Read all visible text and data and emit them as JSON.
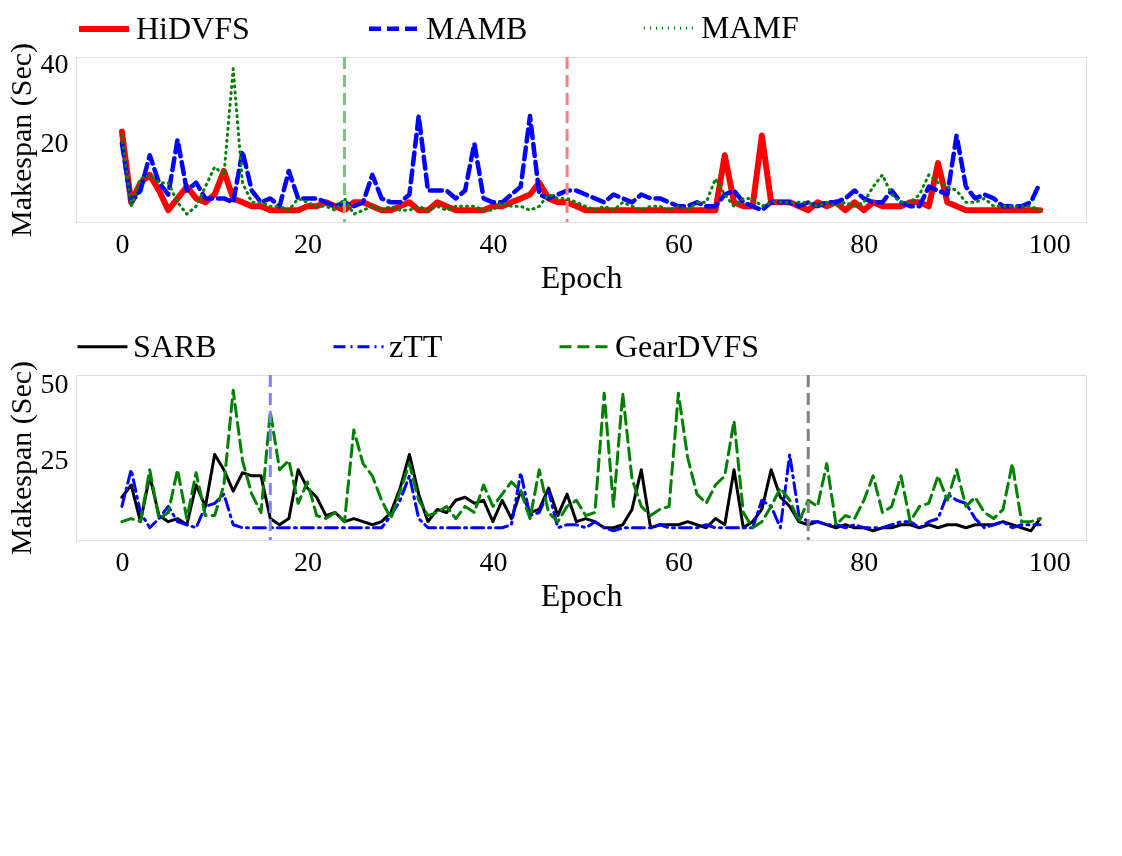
{
  "chart_data": [
    {
      "type": "line",
      "xlabel": "Epoch",
      "ylabel": "Makespan (Sec)",
      "x": [
        0,
        1,
        2,
        3,
        4,
        5,
        6,
        7,
        8,
        9,
        10,
        11,
        12,
        13,
        14,
        15,
        16,
        17,
        18,
        19,
        20,
        21,
        22,
        23,
        24,
        25,
        26,
        27,
        28,
        29,
        30,
        31,
        32,
        33,
        34,
        35,
        36,
        37,
        38,
        39,
        40,
        41,
        42,
        43,
        44,
        45,
        46,
        47,
        48,
        49,
        50,
        51,
        52,
        53,
        54,
        55,
        56,
        57,
        58,
        59,
        60,
        61,
        62,
        63,
        64,
        65,
        66,
        67,
        68,
        69,
        70,
        71,
        72,
        73,
        74,
        75,
        76,
        77,
        78,
        79,
        80,
        81,
        82,
        83,
        84,
        85,
        86,
        87,
        88,
        89,
        90,
        91,
        92,
        93,
        94,
        95,
        96,
        97,
        98,
        99
      ],
      "xlim": [
        -4.95,
        103.95
      ],
      "xticks": [
        0,
        20,
        40,
        60,
        80,
        100
      ],
      "ylim": [
        0,
        42
      ],
      "yticks": [
        20,
        40
      ],
      "grid": false,
      "legend": "top",
      "series": [
        {
          "name": "HiDVFS",
          "color": "#ff0000",
          "line_style": "solid",
          "values": [
            23,
            5,
            10,
            12,
            8,
            3,
            6,
            9,
            6,
            5,
            7,
            13,
            6,
            5,
            4,
            4,
            3,
            3,
            3,
            3,
            4,
            4,
            5,
            4,
            3,
            5,
            5,
            4,
            3,
            3,
            4,
            5,
            3,
            3,
            5,
            4,
            3,
            3,
            3,
            3,
            4,
            4,
            5,
            6,
            7,
            10,
            6,
            5,
            5,
            4,
            3,
            3,
            3,
            3,
            3,
            3,
            3,
            3,
            3,
            3,
            3,
            3,
            3,
            3,
            3,
            17,
            5,
            4,
            4,
            22,
            5,
            5,
            5,
            4,
            3,
            5,
            4,
            5,
            3,
            5,
            3,
            5,
            4,
            4,
            4,
            5,
            5,
            4,
            15,
            5,
            4,
            3,
            3,
            3,
            3,
            3,
            3,
            3,
            3,
            3
          ]
        },
        {
          "name": "MAMB",
          "color": "#0000ff",
          "line_style": "dashed",
          "values": [
            20,
            5,
            8,
            17,
            10,
            7,
            21,
            8,
            10,
            6,
            6,
            6,
            5,
            18,
            8,
            5,
            6,
            4,
            13,
            6,
            6,
            6,
            5,
            4,
            5,
            4,
            5,
            12,
            6,
            5,
            5,
            7,
            27,
            8,
            8,
            8,
            6,
            8,
            20,
            6,
            5,
            5,
            7,
            9,
            27,
            7,
            6,
            7,
            8,
            8,
            7,
            6,
            5,
            7,
            6,
            5,
            7,
            6,
            6,
            5,
            4,
            4,
            5,
            4,
            4,
            7,
            8,
            5,
            4,
            3,
            5,
            5,
            5,
            4,
            5,
            4,
            5,
            5,
            6,
            8,
            6,
            5,
            5,
            8,
            5,
            4,
            4,
            9,
            8,
            7,
            22,
            9,
            6,
            7,
            6,
            4,
            4,
            4,
            5,
            10
          ]
        },
        {
          "name": "MAMF",
          "color": "#008000",
          "line_style": "dotted",
          "values": [
            22,
            4,
            11,
            12,
            10,
            10,
            5,
            2,
            4,
            9,
            14,
            12,
            39,
            10,
            5,
            5,
            4,
            4,
            3,
            6,
            5,
            4,
            4,
            3,
            6,
            2,
            3,
            4,
            3,
            4,
            3,
            3,
            4,
            3,
            4,
            3,
            4,
            4,
            4,
            3,
            3,
            5,
            4,
            4,
            3,
            4,
            7,
            6,
            6,
            5,
            4,
            3,
            4,
            3,
            5,
            4,
            3,
            4,
            4,
            3,
            4,
            3,
            5,
            5,
            11,
            7,
            4,
            6,
            6,
            4,
            5,
            5,
            5,
            5,
            5,
            4,
            5,
            4,
            5,
            4,
            5,
            9,
            12,
            7,
            5,
            5,
            7,
            12,
            10,
            9,
            8,
            5,
            5,
            6,
            4,
            4,
            4,
            4,
            4,
            3
          ]
        }
      ],
      "ref_lines": [
        {
          "axis": "x",
          "value": 24,
          "color": "#80c080",
          "line_style": "dashed"
        },
        {
          "axis": "x",
          "value": 48,
          "color": "#ff8080",
          "line_style": "dashed"
        }
      ]
    },
    {
      "type": "line",
      "xlabel": "Epoch",
      "ylabel": "Makespan (Sec)",
      "x": [
        0,
        1,
        2,
        3,
        4,
        5,
        6,
        7,
        8,
        9,
        10,
        11,
        12,
        13,
        14,
        15,
        16,
        17,
        18,
        19,
        20,
        21,
        22,
        23,
        24,
        25,
        26,
        27,
        28,
        29,
        30,
        31,
        32,
        33,
        34,
        35,
        36,
        37,
        38,
        39,
        40,
        41,
        42,
        43,
        44,
        45,
        46,
        47,
        48,
        49,
        50,
        51,
        52,
        53,
        54,
        55,
        56,
        57,
        58,
        59,
        60,
        61,
        62,
        63,
        64,
        65,
        66,
        67,
        68,
        69,
        70,
        71,
        72,
        73,
        74,
        75,
        76,
        77,
        78,
        79,
        80,
        81,
        82,
        83,
        84,
        85,
        86,
        87,
        88,
        89,
        90,
        91,
        92,
        93,
        94,
        95,
        96,
        97,
        98,
        99
      ],
      "xlim": [
        -4.95,
        103.95
      ],
      "xticks": [
        0,
        20,
        40,
        60,
        80,
        100
      ],
      "ylim": [
        -1,
        53
      ],
      "yticks": [
        25,
        50
      ],
      "grid": false,
      "legend": "top",
      "series": [
        {
          "name": "SARB",
          "color": "#000000",
          "line_style": "solid",
          "values": [
            13,
            17,
            5,
            20,
            7,
            5,
            6,
            4,
            17,
            10,
            27,
            22,
            15,
            21,
            20,
            20,
            6,
            4,
            6,
            22,
            16,
            13,
            7,
            8,
            5,
            6,
            5,
            4,
            5,
            8,
            16,
            27,
            14,
            5,
            9,
            8,
            12,
            13,
            11,
            12,
            5,
            12,
            6,
            15,
            8,
            9,
            16,
            7,
            14,
            5,
            6,
            5,
            3,
            3,
            4,
            9,
            22,
            3,
            4,
            4,
            4,
            5,
            4,
            3,
            6,
            4,
            22,
            3,
            5,
            9,
            22,
            13,
            10,
            5,
            4,
            5,
            4,
            3,
            4,
            3,
            3,
            2,
            3,
            3,
            4,
            4,
            3,
            4,
            3,
            4,
            4,
            3,
            4,
            4,
            4,
            5,
            4,
            3,
            2,
            6
          ]
        },
        {
          "name": "zTT",
          "color": "#0000ff",
          "line_style": "dashdot",
          "values": [
            10,
            22,
            8,
            3,
            6,
            10,
            5,
            4,
            3,
            10,
            11,
            14,
            4,
            3,
            3,
            3,
            3,
            3,
            3,
            3,
            3,
            3,
            3,
            3,
            3,
            3,
            3,
            3,
            3,
            7,
            12,
            20,
            6,
            3,
            3,
            3,
            3,
            3,
            3,
            3,
            3,
            3,
            4,
            21,
            7,
            8,
            15,
            3,
            4,
            4,
            3,
            5,
            3,
            2,
            3,
            3,
            3,
            3,
            4,
            3,
            3,
            3,
            3,
            4,
            3,
            3,
            3,
            3,
            3,
            12,
            10,
            3,
            27,
            7,
            5,
            5,
            4,
            4,
            3,
            4,
            3,
            3,
            3,
            4,
            5,
            5,
            3,
            5,
            6,
            14,
            12,
            11,
            6,
            3,
            4,
            5,
            3,
            4,
            4,
            4
          ]
        },
        {
          "name": "GearDVFS",
          "color": "#008000",
          "line_style": "dashed",
          "values": [
            5,
            6,
            5,
            22,
            6,
            8,
            22,
            6,
            21,
            7,
            7,
            17,
            48,
            25,
            14,
            8,
            41,
            22,
            25,
            11,
            18,
            7,
            6,
            8,
            5,
            35,
            24,
            20,
            12,
            6,
            15,
            24,
            12,
            7,
            8,
            10,
            6,
            10,
            8,
            17,
            10,
            14,
            18,
            15,
            6,
            22,
            8,
            5,
            10,
            12,
            7,
            8,
            47,
            10,
            47,
            19,
            10,
            7,
            9,
            10,
            47,
            26,
            14,
            11,
            17,
            20,
            38,
            8,
            3,
            5,
            10,
            16,
            12,
            5,
            12,
            10,
            24,
            4,
            7,
            6,
            12,
            20,
            8,
            10,
            20,
            5,
            10,
            11,
            20,
            12,
            22,
            10,
            13,
            8,
            6,
            9,
            24,
            5,
            5,
            6
          ]
        }
      ],
      "ref_lines": [
        {
          "axis": "x",
          "value": 16,
          "color": "#8080ff",
          "line_style": "dashed"
        },
        {
          "axis": "x",
          "value": 74,
          "color": "#808080",
          "line_style": "dashed"
        }
      ]
    }
  ]
}
